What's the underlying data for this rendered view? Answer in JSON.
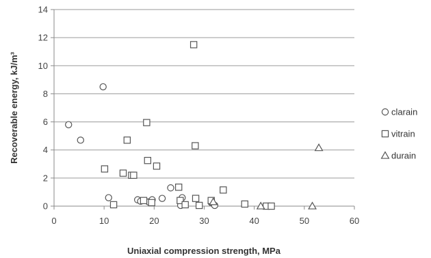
{
  "chart_data": {
    "type": "scatter",
    "title": "",
    "xlabel": "Uniaxial compression strength, MPa",
    "ylabel": "Recoverable energy,  kJ/m³",
    "xlim": [
      0,
      60
    ],
    "ylim": [
      0,
      14
    ],
    "xticks": [
      0,
      10,
      20,
      30,
      40,
      50,
      60
    ],
    "yticks": [
      0,
      2,
      4,
      6,
      8,
      10,
      12,
      14
    ],
    "grid": "horizontal",
    "legend": "right",
    "series": [
      {
        "name": "clarain",
        "marker": "circle",
        "color": "#555555",
        "points": [
          [
            2.9,
            5.8
          ],
          [
            5.3,
            4.7
          ],
          [
            9.8,
            8.5
          ],
          [
            10.9,
            0.6
          ],
          [
            16.7,
            0.45
          ],
          [
            17.3,
            0.35
          ],
          [
            18.9,
            0.3
          ],
          [
            19.6,
            0.45
          ],
          [
            21.6,
            0.55
          ],
          [
            23.3,
            1.3
          ],
          [
            25.3,
            0.05
          ],
          [
            25.6,
            0.6
          ],
          [
            31.4,
            0.25
          ],
          [
            32.1,
            0.05
          ]
        ]
      },
      {
        "name": "vitrain",
        "marker": "square",
        "color": "#555555",
        "points": [
          [
            10.1,
            2.65
          ],
          [
            11.9,
            0.1
          ],
          [
            13.8,
            2.35
          ],
          [
            14.6,
            4.7
          ],
          [
            15.5,
            2.2
          ],
          [
            15.9,
            2.2
          ],
          [
            17.9,
            0.4
          ],
          [
            18.5,
            5.95
          ],
          [
            18.7,
            3.25
          ],
          [
            19.5,
            0.25
          ],
          [
            20.5,
            2.85
          ],
          [
            24.9,
            1.35
          ],
          [
            25.2,
            0.4
          ],
          [
            26.2,
            0.1
          ],
          [
            27.9,
            11.5
          ],
          [
            28.2,
            4.3
          ],
          [
            28.3,
            0.55
          ],
          [
            29.0,
            0.05
          ],
          [
            31.4,
            0.4
          ],
          [
            33.8,
            1.15
          ],
          [
            38.1,
            0.15
          ],
          [
            42.4,
            0.0
          ],
          [
            43.4,
            0.0
          ]
        ]
      },
      {
        "name": "durain",
        "marker": "triangle",
        "color": "#555555",
        "points": [
          [
            31.8,
            0.3
          ],
          [
            41.3,
            0.0
          ],
          [
            51.6,
            0.0
          ],
          [
            52.9,
            4.15
          ]
        ]
      }
    ]
  }
}
